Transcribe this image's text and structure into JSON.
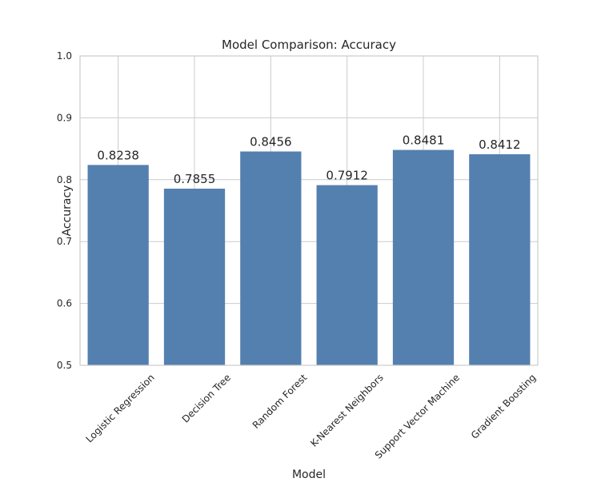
{
  "chart_data": {
    "type": "bar",
    "title": "Model Comparison: Accuracy",
    "xlabel": "Model",
    "ylabel": "Accuracy",
    "categories": [
      "Logistic Regression",
      "Decision Tree",
      "Random Forest",
      "K-Nearest Neighbors",
      "Support Vector Machine",
      "Gradient Boosting"
    ],
    "values": [
      0.8238,
      0.7855,
      0.8456,
      0.7912,
      0.8481,
      0.8412
    ],
    "data_labels": [
      "0.8238",
      "0.7855",
      "0.8456",
      "0.7912",
      "0.8481",
      "0.8412"
    ],
    "ylim": [
      0.5,
      1.0
    ],
    "yticks": [
      0.5,
      0.6,
      0.7,
      0.8,
      0.9,
      1.0
    ],
    "ytick_labels": [
      "0.5",
      "0.6",
      "0.7",
      "0.8",
      "0.9",
      "1.0"
    ],
    "grid": true,
    "bar_color": "#5480b0",
    "x_tick_rotation_deg": 45
  }
}
